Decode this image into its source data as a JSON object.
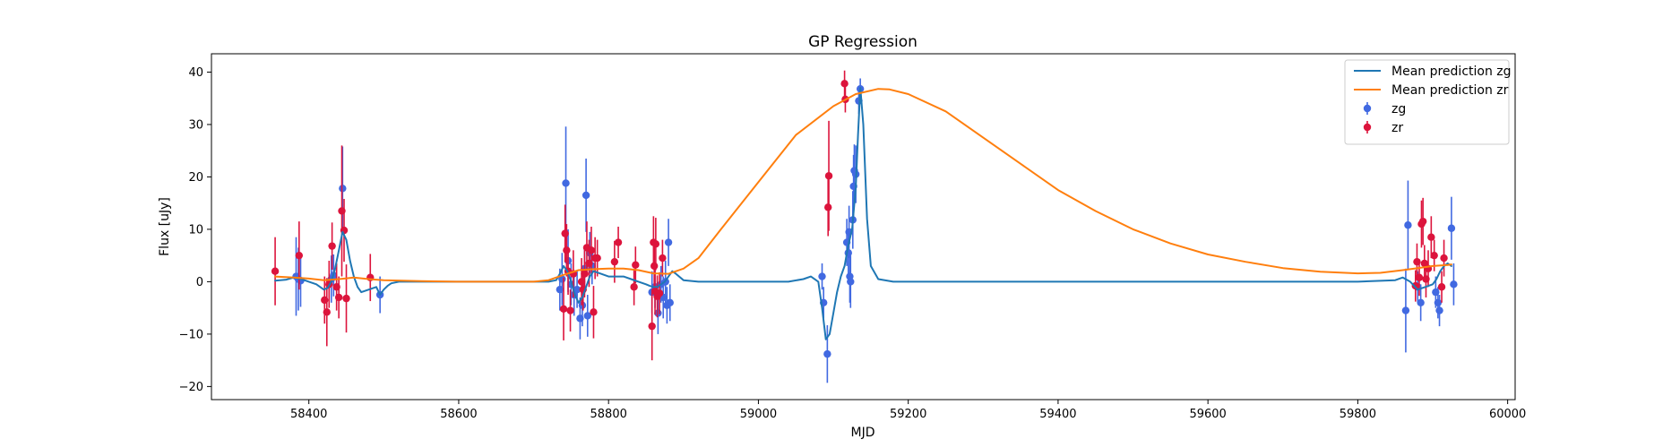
{
  "chart_data": {
    "type": "scatter",
    "title": "GP Regression",
    "xlabel": "MJD",
    "ylabel": "Flux [uJy]",
    "xlim": [
      58270,
      60010
    ],
    "ylim": [
      -22.5,
      43.5
    ],
    "xticks": [
      58400,
      58600,
      58800,
      59000,
      59200,
      59400,
      59600,
      59800,
      60000
    ],
    "yticks": [
      -20,
      -10,
      0,
      10,
      20,
      30,
      40
    ],
    "grid": false,
    "legend_position": "top-right",
    "colors": {
      "zg_line": "#1f77b4",
      "zr_line": "#ff7f0e",
      "zg_points": "#4169e1",
      "zr_points": "#dc143c"
    },
    "lines": [
      {
        "name": "Mean prediction zg",
        "color": "#1f77b4",
        "x": [
          58355,
          58370,
          58380,
          58390,
          58400,
          58410,
          58420,
          58425,
          58430,
          58435,
          58440,
          58445,
          58450,
          58455,
          58460,
          58465,
          58470,
          58480,
          58490,
          58495,
          58500,
          58505,
          58510,
          58520,
          58540,
          58560,
          58600,
          58650,
          58700,
          58720,
          58730,
          58735,
          58740,
          58745,
          58750,
          58755,
          58760,
          58765,
          58770,
          58775,
          58780,
          58790,
          58800,
          58810,
          58820,
          58830,
          58840,
          58850,
          58855,
          58860,
          58865,
          58870,
          58875,
          58880,
          58885,
          58890,
          58900,
          58920,
          58950,
          59000,
          59040,
          59060,
          59070,
          59080,
          59085,
          59090,
          59095,
          59100,
          59105,
          59110,
          59115,
          59120,
          59125,
          59130,
          59133,
          59136,
          59140,
          59145,
          59150,
          59160,
          59180,
          59250,
          59400,
          59600,
          59800,
          59850,
          59860,
          59870,
          59880,
          59890,
          59900,
          59905,
          59910,
          59915,
          59920,
          59925
        ],
        "y": [
          0.2,
          0.4,
          0.8,
          0.5,
          0.0,
          -0.5,
          -1.5,
          -1.2,
          0.0,
          2.5,
          6.0,
          9.5,
          8.0,
          4.0,
          1.0,
          -1.0,
          -2.0,
          -1.5,
          -1.0,
          -2.5,
          -1.5,
          -0.8,
          -0.3,
          0.0,
          0.0,
          0.0,
          0.0,
          0.0,
          0.0,
          0.0,
          0.3,
          1.5,
          3.0,
          2.0,
          0.0,
          -2.5,
          -4.0,
          -3.0,
          -1.0,
          1.0,
          2.0,
          1.5,
          1.0,
          1.0,
          1.0,
          0.5,
          0.0,
          -0.5,
          -0.8,
          -1.0,
          -1.0,
          -0.5,
          0.0,
          1.0,
          2.0,
          1.5,
          0.3,
          0.0,
          0.0,
          0.0,
          0.0,
          0.5,
          1.0,
          0.0,
          -5.0,
          -11.0,
          -10.0,
          -6.0,
          -2.0,
          1.0,
          3.0,
          7.0,
          10.0,
          18.0,
          28.0,
          37.0,
          30.0,
          12.0,
          3.0,
          0.5,
          0.0,
          0.0,
          0.0,
          0.0,
          0.0,
          0.3,
          0.8,
          0.0,
          -1.5,
          -1.0,
          -0.5,
          0.5,
          2.0,
          3.0,
          3.5,
          3.0
        ]
      },
      {
        "name": "Mean prediction zr",
        "color": "#ff7f0e",
        "x": [
          58355,
          58380,
          58400,
          58420,
          58440,
          58460,
          58480,
          58500,
          58550,
          58600,
          58650,
          58700,
          58720,
          58740,
          58760,
          58780,
          58800,
          58820,
          58840,
          58860,
          58880,
          58900,
          58920,
          58950,
          59000,
          59050,
          59100,
          59130,
          59160,
          59175,
          59200,
          59250,
          59300,
          59350,
          59400,
          59450,
          59500,
          59550,
          59600,
          59650,
          59700,
          59750,
          59800,
          59830,
          59860,
          59880,
          59900,
          59920,
          59925
        ],
        "y": [
          1.0,
          0.8,
          0.6,
          0.3,
          0.5,
          0.8,
          0.5,
          0.3,
          0.1,
          0.0,
          0.0,
          0.0,
          0.3,
          1.3,
          2.2,
          2.4,
          2.5,
          2.5,
          2.2,
          1.6,
          1.5,
          2.5,
          4.5,
          10.0,
          19.0,
          28.0,
          33.5,
          35.8,
          36.8,
          36.7,
          35.8,
          32.5,
          27.5,
          22.5,
          17.5,
          13.5,
          10.0,
          7.3,
          5.2,
          3.8,
          2.6,
          1.9,
          1.6,
          1.7,
          2.2,
          2.6,
          3.0,
          3.2,
          3.3
        ]
      }
    ],
    "series": [
      {
        "name": "zg",
        "color": "#4169e1",
        "points": [
          {
            "x": 58383,
            "y": 1.0,
            "err": 7.5
          },
          {
            "x": 58386,
            "y": 0.5,
            "err": 6.0
          },
          {
            "x": 58389,
            "y": 0.2,
            "err": 5.0
          },
          {
            "x": 58430,
            "y": 0.5,
            "err": 4.5
          },
          {
            "x": 58433,
            "y": 1.2,
            "err": 4.0
          },
          {
            "x": 58445,
            "y": 17.8,
            "err": 8.0
          },
          {
            "x": 58495,
            "y": -2.5,
            "err": 3.5
          },
          {
            "x": 58735,
            "y": -1.5,
            "err": 4.0
          },
          {
            "x": 58738,
            "y": 0.5,
            "err": 5.0
          },
          {
            "x": 58743,
            "y": 18.8,
            "err": 10.8
          },
          {
            "x": 58746,
            "y": 4.0,
            "err": 6.0
          },
          {
            "x": 58750,
            "y": -0.5,
            "err": 4.0
          },
          {
            "x": 58754,
            "y": -2.5,
            "err": 4.0
          },
          {
            "x": 58758,
            "y": -1.5,
            "err": 3.5
          },
          {
            "x": 58762,
            "y": -7.0,
            "err": 4.0
          },
          {
            "x": 58765,
            "y": -4.5,
            "err": 4.0
          },
          {
            "x": 58768,
            "y": 2.5,
            "err": 4.0
          },
          {
            "x": 58770,
            "y": 16.5,
            "err": 7.0
          },
          {
            "x": 58772,
            "y": -6.5,
            "err": 4.0
          },
          {
            "x": 58775,
            "y": 5.5,
            "err": 4.0
          },
          {
            "x": 58778,
            "y": 3.0,
            "err": 3.5
          },
          {
            "x": 58858,
            "y": -2.0,
            "err": 4.0
          },
          {
            "x": 58862,
            "y": -1.0,
            "err": 4.0
          },
          {
            "x": 58866,
            "y": -6.0,
            "err": 4.0
          },
          {
            "x": 58870,
            "y": -0.5,
            "err": 3.5
          },
          {
            "x": 58873,
            "y": -3.0,
            "err": 4.0
          },
          {
            "x": 58876,
            "y": 0.0,
            "err": 4.0
          },
          {
            "x": 58878,
            "y": -4.5,
            "err": 3.5
          },
          {
            "x": 58880,
            "y": 7.5,
            "err": 4.5
          },
          {
            "x": 58882,
            "y": -4.0,
            "err": 3.5
          },
          {
            "x": 59085,
            "y": 1.0,
            "err": 2.5
          },
          {
            "x": 59087,
            "y": -4.0,
            "err": 3.0
          },
          {
            "x": 59092,
            "y": -13.8,
            "err": 5.5
          },
          {
            "x": 59118,
            "y": 7.5,
            "err": 4.5
          },
          {
            "x": 59120,
            "y": 5.5,
            "err": 4.5
          },
          {
            "x": 59121,
            "y": 9.5,
            "err": 5.0
          },
          {
            "x": 59122,
            "y": 1.0,
            "err": 5.0
          },
          {
            "x": 59123,
            "y": 0.0,
            "err": 5.0
          },
          {
            "x": 59126,
            "y": 11.8,
            "err": 5.5
          },
          {
            "x": 59127,
            "y": 18.2,
            "err": 6.0
          },
          {
            "x": 59128,
            "y": 21.2,
            "err": 5.0
          },
          {
            "x": 59130,
            "y": 20.5,
            "err": 5.5
          },
          {
            "x": 59134,
            "y": 34.5,
            "err": 2.5
          },
          {
            "x": 59136,
            "y": 36.8,
            "err": 2.0
          },
          {
            "x": 59864,
            "y": -5.5,
            "err": 8.0
          },
          {
            "x": 59867,
            "y": 10.8,
            "err": 8.5
          },
          {
            "x": 59880,
            "y": -1.0,
            "err": 3.0
          },
          {
            "x": 59884,
            "y": -4.0,
            "err": 3.5
          },
          {
            "x": 59904,
            "y": -2.0,
            "err": 3.0
          },
          {
            "x": 59907,
            "y": -4.0,
            "err": 3.0
          },
          {
            "x": 59909,
            "y": -5.5,
            "err": 3.0
          },
          {
            "x": 59925,
            "y": 10.2,
            "err": 6.0
          },
          {
            "x": 59928,
            "y": -0.5,
            "err": 4.0
          }
        ]
      },
      {
        "name": "zr",
        "color": "#dc143c",
        "points": [
          {
            "x": 58355,
            "y": 2.0,
            "err": 6.5
          },
          {
            "x": 58387,
            "y": 5.0,
            "err": 6.5
          },
          {
            "x": 58421,
            "y": -3.5,
            "err": 4.5
          },
          {
            "x": 58424,
            "y": -5.8,
            "err": 6.5
          },
          {
            "x": 58427,
            "y": -0.5,
            "err": 4.5
          },
          {
            "x": 58431,
            "y": 6.8,
            "err": 4.5
          },
          {
            "x": 58437,
            "y": -1.0,
            "err": 4.5
          },
          {
            "x": 58440,
            "y": -3.0,
            "err": 4.0
          },
          {
            "x": 58444,
            "y": 13.5,
            "err": 12.5
          },
          {
            "x": 58447,
            "y": 9.8,
            "err": 6.0
          },
          {
            "x": 58450,
            "y": -3.2,
            "err": 6.5
          },
          {
            "x": 58482,
            "y": 0.8,
            "err": 4.5
          },
          {
            "x": 58740,
            "y": -5.2,
            "err": 6.0
          },
          {
            "x": 58742,
            "y": 9.2,
            "err": 5.5
          },
          {
            "x": 58744,
            "y": 6.0,
            "err": 5.0
          },
          {
            "x": 58746,
            "y": 2.0,
            "err": 4.5
          },
          {
            "x": 58749,
            "y": -5.5,
            "err": 4.0
          },
          {
            "x": 58753,
            "y": 1.5,
            "err": 4.5
          },
          {
            "x": 58764,
            "y": 0.0,
            "err": 4.5
          },
          {
            "x": 58766,
            "y": -1.5,
            "err": 4.0
          },
          {
            "x": 58768,
            "y": 1.5,
            "err": 4.5
          },
          {
            "x": 58771,
            "y": 6.5,
            "err": 5.0
          },
          {
            "x": 58774,
            "y": 3.5,
            "err": 4.5
          },
          {
            "x": 58777,
            "y": 6.0,
            "err": 4.5
          },
          {
            "x": 58780,
            "y": -5.8,
            "err": 5.0
          },
          {
            "x": 58782,
            "y": 4.5,
            "err": 4.0
          },
          {
            "x": 58785,
            "y": 4.5,
            "err": 3.5
          },
          {
            "x": 58808,
            "y": 3.8,
            "err": 4.0
          },
          {
            "x": 58813,
            "y": 7.5,
            "err": 3.0
          },
          {
            "x": 58834,
            "y": -1.0,
            "err": 3.5
          },
          {
            "x": 58836,
            "y": 3.2,
            "err": 3.5
          },
          {
            "x": 58858,
            "y": -8.5,
            "err": 6.5
          },
          {
            "x": 58860,
            "y": 7.5,
            "err": 5.0
          },
          {
            "x": 58861,
            "y": 3.0,
            "err": 5.0
          },
          {
            "x": 58862,
            "y": -1.8,
            "err": 4.5
          },
          {
            "x": 58863,
            "y": 7.2,
            "err": 5.0
          },
          {
            "x": 58865,
            "y": -2.8,
            "err": 4.0
          },
          {
            "x": 58868,
            "y": -2.2,
            "err": 4.0
          },
          {
            "x": 58872,
            "y": 4.5,
            "err": 3.5
          },
          {
            "x": 59093,
            "y": 14.2,
            "err": 5.5
          },
          {
            "x": 59094,
            "y": 20.2,
            "err": 10.5
          },
          {
            "x": 59115,
            "y": 37.8,
            "err": 2.5
          },
          {
            "x": 59116,
            "y": 34.8,
            "err": 2.5
          },
          {
            "x": 59877,
            "y": -0.8,
            "err": 3.0
          },
          {
            "x": 59879,
            "y": 3.8,
            "err": 3.5
          },
          {
            "x": 59882,
            "y": 0.8,
            "err": 3.5
          },
          {
            "x": 59885,
            "y": 11.0,
            "err": 4.5
          },
          {
            "x": 59887,
            "y": 11.5,
            "err": 4.5
          },
          {
            "x": 59889,
            "y": 3.5,
            "err": 3.5
          },
          {
            "x": 59891,
            "y": 0.5,
            "err": 3.5
          },
          {
            "x": 59894,
            "y": 2.5,
            "err": 3.5
          },
          {
            "x": 59898,
            "y": 8.5,
            "err": 4.0
          },
          {
            "x": 59902,
            "y": 5.0,
            "err": 3.0
          },
          {
            "x": 59912,
            "y": -1.0,
            "err": 3.0
          },
          {
            "x": 59915,
            "y": 4.5,
            "err": 3.5
          }
        ]
      }
    ]
  }
}
